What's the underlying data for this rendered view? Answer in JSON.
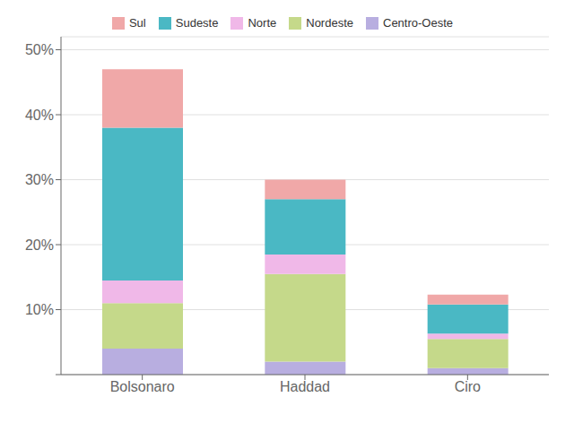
{
  "chart_data": {
    "type": "bar",
    "stacked": true,
    "categories": [
      "Bolsonaro",
      "Haddad",
      "Ciro"
    ],
    "series": [
      {
        "name": "Centro-Oeste",
        "color": "#b8aee0",
        "values": [
          4.0,
          2.0,
          1.0
        ]
      },
      {
        "name": "Nordeste",
        "color": "#c5d98a",
        "values": [
          7.0,
          13.5,
          4.5
        ]
      },
      {
        "name": "Norte",
        "color": "#f0b8e8",
        "values": [
          3.5,
          3.0,
          0.8
        ]
      },
      {
        "name": "Sudeste",
        "color": "#4ab8c4",
        "values": [
          23.5,
          8.5,
          4.5
        ]
      },
      {
        "name": "Sul",
        "color": "#f0a8a8",
        "values": [
          9.0,
          3.0,
          1.5
        ]
      }
    ],
    "ylim": [
      0,
      52
    ],
    "yticks": [
      {
        "value": 0,
        "label": ""
      },
      {
        "value": 10,
        "label": "10%"
      },
      {
        "value": 20,
        "label": "20%"
      },
      {
        "value": 30,
        "label": "30%"
      },
      {
        "value": 40,
        "label": "40%"
      },
      {
        "value": 50,
        "label": "50%"
      }
    ],
    "grid": true,
    "legend": "top"
  }
}
